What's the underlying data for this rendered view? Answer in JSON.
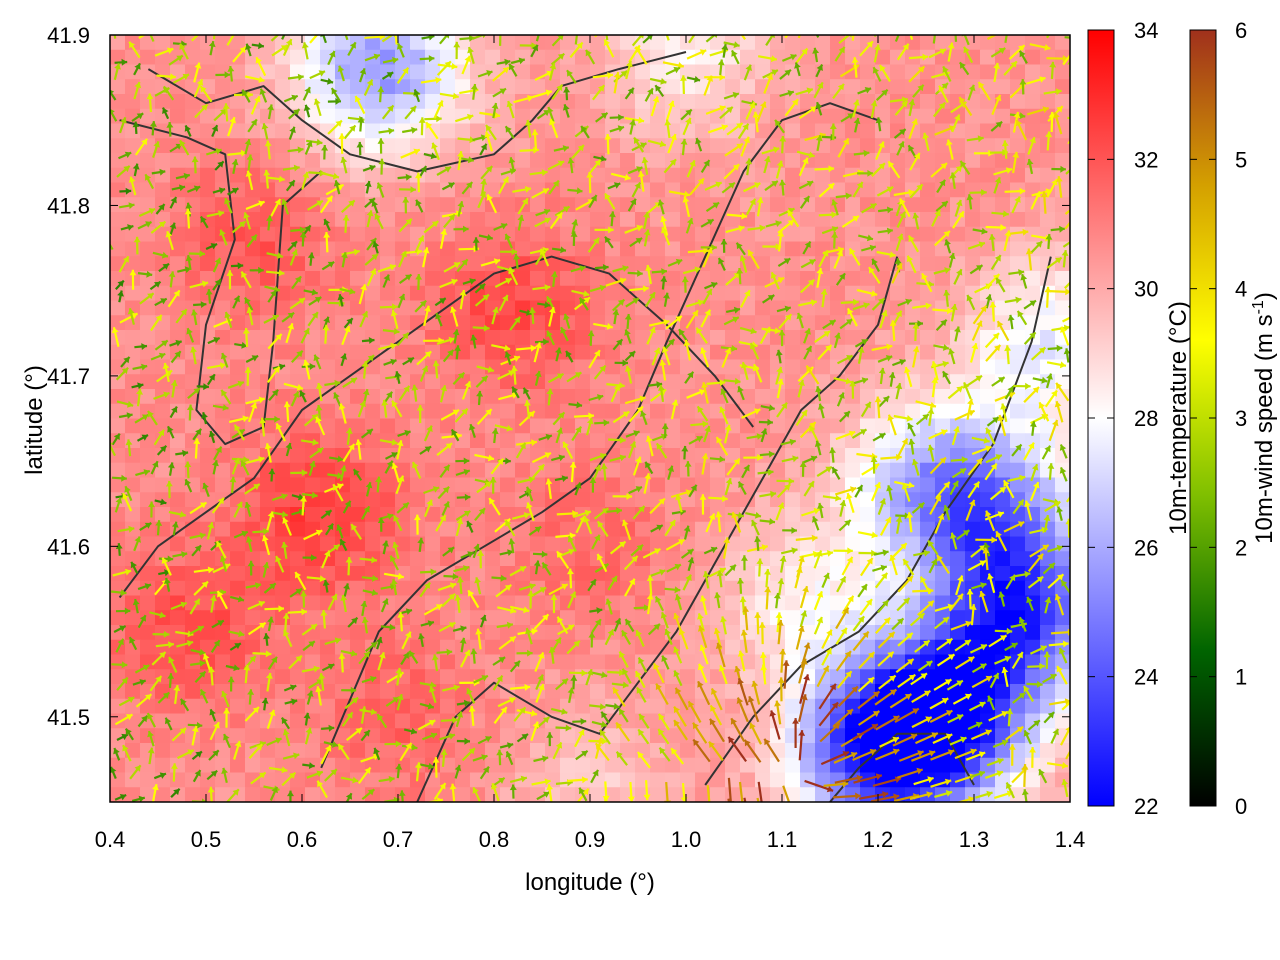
{
  "chart_data": {
    "type": "heatmap",
    "title": "",
    "xlabel": "longitude (°)",
    "ylabel": "latitude (°)",
    "xlim": [
      0.4,
      1.4
    ],
    "ylim": [
      41.45,
      41.9
    ],
    "x_ticks": [
      "0.4",
      "0.5",
      "0.6",
      "0.7",
      "0.8",
      "0.9",
      "1.0",
      "1.1",
      "1.2",
      "1.3",
      "1.4"
    ],
    "y_ticks": [
      "41.5",
      "41.6",
      "41.7",
      "41.8",
      "41.9"
    ],
    "grid": false,
    "temperature_colorbar": {
      "label": "10m-temperature (°C)",
      "range": [
        22,
        34
      ],
      "ticks": [
        "22",
        "24",
        "26",
        "28",
        "30",
        "32",
        "34"
      ],
      "colors": [
        "#0000ff",
        "#ffffff",
        "#ff0000"
      ]
    },
    "wind_colorbar": {
      "label_main": "10m-wind speed (m s",
      "label_sup": "-1",
      "label_end": ")",
      "range": [
        0,
        6
      ],
      "ticks": [
        "0",
        "1",
        "2",
        "3",
        "4",
        "5",
        "6"
      ],
      "colors": [
        "#000000",
        "#006400",
        "#7fbf00",
        "#ffff00",
        "#d4a000",
        "#a0301c"
      ]
    },
    "temperature_field": {
      "background_c": 30.6,
      "features": [
        {
          "lon": 0.62,
          "lat": 41.62,
          "c": 32.6
        },
        {
          "lon": 0.82,
          "lat": 41.74,
          "c": 32.3
        },
        {
          "lon": 0.48,
          "lat": 41.55,
          "c": 32.2
        },
        {
          "lon": 0.55,
          "lat": 41.78,
          "c": 32.0
        },
        {
          "lon": 0.9,
          "lat": 41.6,
          "c": 31.6
        },
        {
          "lon": 0.7,
          "lat": 41.5,
          "c": 31.7
        },
        {
          "lon": 0.68,
          "lat": 41.88,
          "c": 25.5
        },
        {
          "lon": 1.27,
          "lat": 41.5,
          "c": 23.2
        },
        {
          "lon": 1.2,
          "lat": 41.48,
          "c": 23.6
        },
        {
          "lon": 1.35,
          "lat": 41.56,
          "c": 24.0
        },
        {
          "lon": 1.32,
          "lat": 41.62,
          "c": 26.5
        },
        {
          "lon": 1.25,
          "lat": 41.64,
          "c": 27.2
        },
        {
          "lon": 1.12,
          "lat": 41.57,
          "c": 28.4
        },
        {
          "lon": 1.38,
          "lat": 41.72,
          "c": 27.6
        },
        {
          "lon": 1.0,
          "lat": 41.89,
          "c": 28.4
        },
        {
          "lon": 0.9,
          "lat": 41.46,
          "c": 29.3
        }
      ]
    },
    "wind_field": {
      "mean_direction_deg": 55,
      "stronger_toward": "south-east",
      "max_speed_region": {
        "lon": 1.12,
        "lat": 41.47,
        "speed": 5.8
      }
    },
    "contours": [
      [
        [
          0.44,
          41.88
        ],
        [
          0.5,
          41.86
        ],
        [
          0.56,
          41.87
        ],
        [
          0.6,
          41.85
        ],
        [
          0.65,
          41.83
        ],
        [
          0.72,
          41.82
        ],
        [
          0.8,
          41.83
        ],
        [
          0.84,
          41.85
        ],
        [
          0.87,
          41.87
        ],
        [
          0.93,
          41.88
        ],
        [
          1.0,
          41.89
        ]
      ],
      [
        [
          0.41,
          41.85
        ],
        [
          0.48,
          41.84
        ],
        [
          0.52,
          41.83
        ],
        [
          0.53,
          41.78
        ],
        [
          0.5,
          41.73
        ],
        [
          0.49,
          41.68
        ],
        [
          0.52,
          41.66
        ],
        [
          0.56,
          41.67
        ],
        [
          0.57,
          41.72
        ],
        [
          0.58,
          41.8
        ],
        [
          0.62,
          41.82
        ]
      ],
      [
        [
          0.41,
          41.57
        ],
        [
          0.45,
          41.6
        ],
        [
          0.5,
          41.62
        ],
        [
          0.55,
          41.64
        ],
        [
          0.6,
          41.68
        ],
        [
          0.65,
          41.7
        ],
        [
          0.7,
          41.72
        ],
        [
          0.75,
          41.74
        ],
        [
          0.8,
          41.76
        ],
        [
          0.86,
          41.77
        ],
        [
          0.92,
          41.76
        ],
        [
          0.98,
          41.73
        ],
        [
          1.03,
          41.7
        ],
        [
          1.07,
          41.67
        ]
      ],
      [
        [
          0.72,
          41.45
        ],
        [
          0.76,
          41.5
        ],
        [
          0.8,
          41.52
        ],
        [
          0.86,
          41.5
        ],
        [
          0.91,
          41.49
        ],
        [
          0.95,
          41.52
        ],
        [
          0.99,
          41.55
        ],
        [
          1.04,
          41.6
        ],
        [
          1.08,
          41.64
        ],
        [
          1.12,
          41.68
        ],
        [
          1.16,
          41.7
        ],
        [
          1.2,
          41.73
        ],
        [
          1.22,
          41.77
        ]
      ],
      [
        [
          1.02,
          41.46
        ],
        [
          1.07,
          41.5
        ],
        [
          1.12,
          41.53
        ],
        [
          1.18,
          41.55
        ],
        [
          1.23,
          41.58
        ],
        [
          1.27,
          41.62
        ],
        [
          1.32,
          41.66
        ],
        [
          1.36,
          41.72
        ],
        [
          1.38,
          41.77
        ]
      ],
      [
        [
          0.62,
          41.47
        ],
        [
          0.68,
          41.55
        ],
        [
          0.73,
          41.58
        ],
        [
          0.79,
          41.6
        ],
        [
          0.85,
          41.62
        ],
        [
          0.9,
          41.64
        ],
        [
          0.95,
          41.68
        ],
        [
          0.98,
          41.72
        ],
        [
          1.02,
          41.77
        ],
        [
          1.06,
          41.82
        ],
        [
          1.1,
          41.85
        ],
        [
          1.15,
          41.86
        ],
        [
          1.2,
          41.85
        ]
      ],
      [
        [
          1.15,
          41.45
        ],
        [
          1.18,
          41.47
        ],
        [
          1.22,
          41.49
        ],
        [
          1.27,
          41.49
        ],
        [
          1.3,
          41.46
        ]
      ]
    ]
  }
}
